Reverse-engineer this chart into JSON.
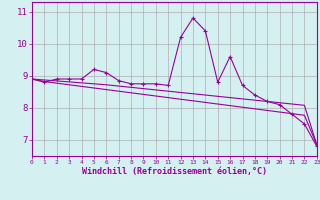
{
  "xlabel": "Windchill (Refroidissement éolien,°C)",
  "x_values": [
    0,
    1,
    2,
    3,
    4,
    5,
    6,
    7,
    8,
    9,
    10,
    11,
    12,
    13,
    14,
    15,
    16,
    17,
    18,
    19,
    20,
    21,
    22,
    23
  ],
  "line1": [
    8.9,
    8.8,
    8.9,
    8.9,
    8.9,
    9.2,
    9.1,
    8.85,
    8.75,
    8.75,
    8.75,
    8.7,
    10.2,
    10.8,
    10.4,
    8.8,
    9.6,
    8.7,
    8.4,
    8.2,
    8.1,
    7.8,
    7.5,
    6.8
  ],
  "line2": [
    8.9,
    8.82,
    8.77,
    8.72,
    8.67,
    8.62,
    8.57,
    8.52,
    8.47,
    8.42,
    8.37,
    8.32,
    8.27,
    8.22,
    8.17,
    8.12,
    8.07,
    8.02,
    7.97,
    7.92,
    7.87,
    7.82,
    7.77,
    6.85
  ],
  "line3": [
    8.9,
    8.87,
    8.84,
    8.81,
    8.78,
    8.75,
    8.72,
    8.68,
    8.64,
    8.6,
    8.56,
    8.52,
    8.48,
    8.44,
    8.4,
    8.36,
    8.32,
    8.28,
    8.24,
    8.2,
    8.16,
    8.12,
    8.08,
    6.85
  ],
  "line_color": "#990099",
  "bg_color": "#d4f0f0",
  "grid_color": "#b0b0b0",
  "ylim": [
    6.5,
    11.3
  ],
  "yticks": [
    7,
    8,
    9,
    10,
    11
  ],
  "xlim": [
    0,
    23
  ]
}
